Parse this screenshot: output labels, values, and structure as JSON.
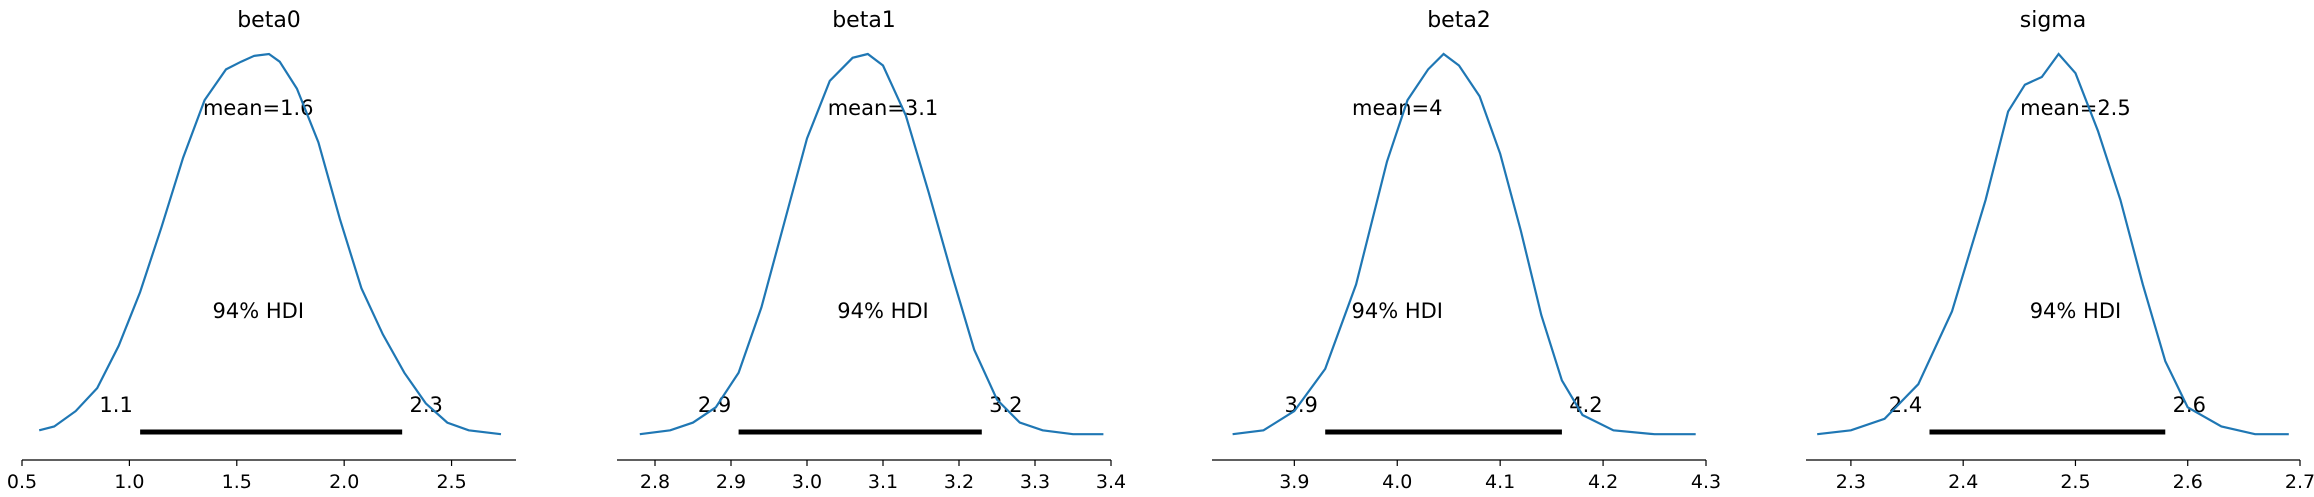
{
  "chart_data": [
    {
      "type": "line",
      "title": "beta0",
      "mean_label": "mean=1.6",
      "hdi_label": "94% HDI",
      "hdi": [
        1.05,
        2.27
      ],
      "hdi_labels": [
        "1.1",
        "2.3"
      ],
      "xlim": [
        0.5,
        2.8
      ],
      "ticks": [
        0.5,
        1.0,
        1.5,
        2.0,
        2.5
      ],
      "tick_labels": [
        "0.5",
        "1.0",
        "1.5",
        "2.0",
        "2.5"
      ],
      "mean": 1.6,
      "x": [
        0.58,
        0.65,
        0.75,
        0.85,
        0.95,
        1.05,
        1.15,
        1.25,
        1.35,
        1.45,
        1.52,
        1.58,
        1.65,
        1.7,
        1.78,
        1.88,
        1.98,
        2.08,
        2.18,
        2.28,
        2.38,
        2.48,
        2.58,
        2.73
      ],
      "y": [
        0.02,
        0.03,
        0.07,
        0.13,
        0.24,
        0.38,
        0.55,
        0.73,
        0.88,
        0.96,
        0.98,
        0.995,
        1.0,
        0.98,
        0.91,
        0.77,
        0.57,
        0.39,
        0.27,
        0.17,
        0.09,
        0.04,
        0.02,
        0.01
      ]
    },
    {
      "type": "line",
      "title": "beta1",
      "mean_label": "mean=3.1",
      "hdi_label": "94% HDI",
      "hdi": [
        2.91,
        3.23
      ],
      "hdi_labels": [
        "2.9",
        "3.2"
      ],
      "xlim": [
        2.75,
        3.4
      ],
      "ticks": [
        2.8,
        2.9,
        3.0,
        3.1,
        3.2,
        3.3,
        3.4
      ],
      "tick_labels": [
        "2.8",
        "2.9",
        "3.0",
        "3.1",
        "3.2",
        "3.3",
        "3.4"
      ],
      "mean": 3.1,
      "x": [
        2.78,
        2.82,
        2.85,
        2.88,
        2.91,
        2.94,
        2.97,
        3.0,
        3.03,
        3.06,
        3.08,
        3.1,
        3.13,
        3.16,
        3.19,
        3.22,
        3.25,
        3.28,
        3.31,
        3.35,
        3.39
      ],
      "y": [
        0.01,
        0.02,
        0.04,
        0.08,
        0.17,
        0.34,
        0.56,
        0.78,
        0.93,
        0.99,
        1.0,
        0.97,
        0.84,
        0.64,
        0.43,
        0.23,
        0.1,
        0.04,
        0.02,
        0.01,
        0.01
      ]
    },
    {
      "type": "line",
      "title": "beta2",
      "mean_label": "mean=4",
      "hdi_label": "94% HDI",
      "hdi": [
        3.93,
        4.16
      ],
      "hdi_labels": [
        "3.9",
        "4.2"
      ],
      "xlim": [
        3.82,
        4.3
      ],
      "ticks": [
        3.9,
        4.0,
        4.1,
        4.2,
        4.3
      ],
      "tick_labels": [
        "3.9",
        "4.0",
        "4.1",
        "4.2",
        "4.3"
      ],
      "mean": 4,
      "x": [
        3.84,
        3.87,
        3.9,
        3.93,
        3.96,
        3.99,
        4.01,
        4.03,
        4.045,
        4.06,
        4.08,
        4.1,
        4.12,
        4.14,
        4.16,
        4.18,
        4.21,
        4.25,
        4.29
      ],
      "y": [
        0.01,
        0.02,
        0.07,
        0.18,
        0.4,
        0.72,
        0.88,
        0.96,
        1.0,
        0.97,
        0.89,
        0.74,
        0.54,
        0.32,
        0.15,
        0.06,
        0.02,
        0.01,
        0.01
      ]
    },
    {
      "type": "line",
      "title": "sigma",
      "mean_label": "mean=2.5",
      "hdi_label": "94% HDI",
      "hdi": [
        2.37,
        2.58
      ],
      "hdi_labels": [
        "2.4",
        "2.6"
      ],
      "xlim": [
        2.26,
        2.7
      ],
      "ticks": [
        2.3,
        2.4,
        2.5,
        2.6,
        2.7
      ],
      "tick_labels": [
        "2.3",
        "2.4",
        "2.5",
        "2.6",
        "2.7"
      ],
      "mean": 2.5,
      "x": [
        2.27,
        2.3,
        2.33,
        2.36,
        2.39,
        2.42,
        2.44,
        2.455,
        2.47,
        2.485,
        2.5,
        2.52,
        2.54,
        2.56,
        2.58,
        2.6,
        2.63,
        2.66,
        2.69
      ],
      "y": [
        0.01,
        0.02,
        0.05,
        0.14,
        0.33,
        0.62,
        0.85,
        0.92,
        0.94,
        1.0,
        0.95,
        0.8,
        0.62,
        0.4,
        0.2,
        0.08,
        0.03,
        0.01,
        0.01
      ]
    }
  ],
  "colors": {
    "line": "#1f77b4",
    "bar": "#000000"
  }
}
